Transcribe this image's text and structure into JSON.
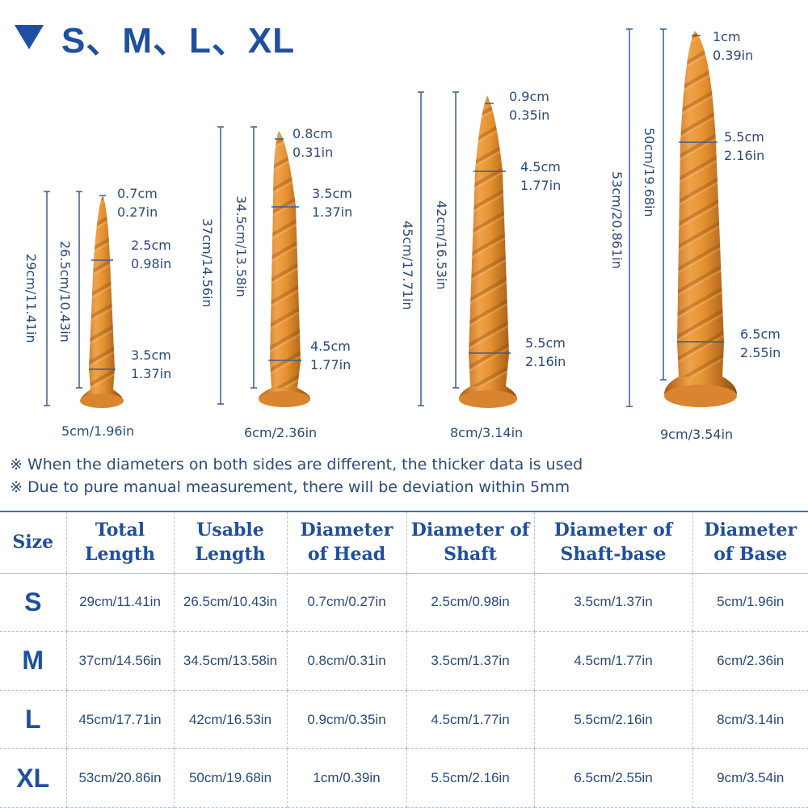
{
  "header": {
    "title": "S、M、L、XL"
  },
  "products": [
    {
      "size": "S",
      "total_length": "29cm/11.41in",
      "usable_length": "26.5cm/10.43in",
      "head": [
        "0.7cm",
        "0.27in"
      ],
      "shaft": [
        "2.5cm",
        "0.98in"
      ],
      "shaft_base": [
        "3.5cm",
        "1.37in"
      ],
      "base": "5cm/1.96in"
    },
    {
      "size": "M",
      "total_length": "37cm/14.56in",
      "usable_length": "34.5cm/13.58in",
      "head": [
        "0.8cm",
        "0.31in"
      ],
      "shaft": [
        "3.5cm",
        "1.37in"
      ],
      "shaft_base": [
        "4.5cm",
        "1.77in"
      ],
      "base": "6cm/2.36in"
    },
    {
      "size": "L",
      "total_length": "45cm/17.71in",
      "usable_length": "42cm/16.53in",
      "head": [
        "0.9cm",
        "0.35in"
      ],
      "shaft": [
        "4.5cm",
        "1.77in"
      ],
      "shaft_base": [
        "5.5cm",
        "2.16in"
      ],
      "base": "8cm/3.14in"
    },
    {
      "size": "XL",
      "total_length": "53cm/20.861in",
      "usable_length": "50cm/19.68in",
      "head": [
        "1cm",
        "0.39in"
      ],
      "shaft": [
        "5.5cm",
        "2.16in"
      ],
      "shaft_base": [
        "6.5cm",
        "2.55in"
      ],
      "base": "9cm/3.54in"
    }
  ],
  "notes": [
    "※ When the diameters on both sides are different, the thicker data is used",
    "※ Due to pure manual measurement, there will be deviation within 5mm"
  ],
  "table": {
    "headers": [
      "Size",
      "Total Length",
      "Usable Length",
      "Diameter of Head",
      "Diameter of Shaft",
      "Diameter of Shaft-base",
      "Diameter of Base"
    ],
    "rows": [
      [
        "S",
        "29cm/11.41in",
        "26.5cm/10.43in",
        "0.7cm/0.27in",
        "2.5cm/0.98in",
        "3.5cm/1.37in",
        "5cm/1.96in"
      ],
      [
        "M",
        "37cm/14.56in",
        "34.5cm/13.58in",
        "0.8cm/0.31in",
        "3.5cm/1.37in",
        "4.5cm/1.77in",
        "6cm/2.36in"
      ],
      [
        "L",
        "45cm/17.71in",
        "42cm/16.53in",
        "0.9cm/0.35in",
        "4.5cm/1.77in",
        "5.5cm/2.16in",
        "8cm/3.14in"
      ],
      [
        "XL",
        "53cm/20.86in",
        "50cm/19.68in",
        "1cm/0.39in",
        "5.5cm/2.16in",
        "6.5cm/2.55in",
        "9cm/3.54in"
      ]
    ]
  },
  "colors": {
    "accent": "#1f4f9f",
    "text": "#2a4a7a",
    "product": "#d9822b",
    "line": "#4a6fa5"
  }
}
